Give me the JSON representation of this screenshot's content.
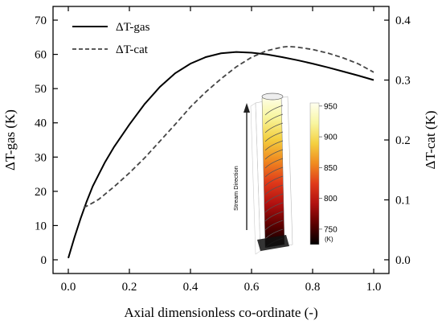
{
  "chart_data": {
    "type": "line",
    "xlabel": "Axial dimensionless co-ordinate (-)",
    "ylabel": "ΔT-gas (K)",
    "y2label": "ΔT-cat (K)",
    "xlim": [
      -0.05,
      1.05
    ],
    "ylim": [
      -4,
      74
    ],
    "y2lim": [
      -0.0229,
      0.4229
    ],
    "x_ticks": [
      "0.0",
      "0.2",
      "0.4",
      "0.6",
      "0.8",
      "1.0"
    ],
    "x_tick_values": [
      0,
      0.2,
      0.4,
      0.6,
      0.8,
      1.0
    ],
    "y_ticks": [
      "0",
      "10",
      "20",
      "30",
      "40",
      "50",
      "60",
      "70"
    ],
    "y_tick_values": [
      0,
      10,
      20,
      30,
      40,
      50,
      60,
      70
    ],
    "y2_ticks": [
      "0.0",
      "0.1",
      "0.2",
      "0.3",
      "0.4"
    ],
    "y2_tick_values": [
      0,
      0.1,
      0.2,
      0.3,
      0.4
    ],
    "grid": false,
    "legend_position": "top-left",
    "series": [
      {
        "name": "ΔT-gas",
        "axis": "left",
        "style": "solid",
        "color": "#000000",
        "x": [
          0.0,
          0.02,
          0.04,
          0.06,
          0.08,
          0.1,
          0.12,
          0.15,
          0.2,
          0.25,
          0.3,
          0.35,
          0.4,
          0.45,
          0.5,
          0.55,
          0.6,
          0.65,
          0.7,
          0.75,
          0.8,
          0.85,
          0.9,
          0.95,
          1.0
        ],
        "values": [
          0.5,
          6.5,
          12.0,
          17.0,
          21.5,
          25.0,
          28.5,
          33.0,
          39.5,
          45.5,
          50.5,
          54.5,
          57.3,
          59.2,
          60.3,
          60.7,
          60.5,
          60.0,
          59.2,
          58.3,
          57.3,
          56.2,
          55.0,
          53.8,
          52.5
        ]
      },
      {
        "name": "ΔT-cat",
        "axis": "right",
        "style": "dashed",
        "color": "#444444",
        "x": [
          0.05,
          0.08,
          0.1,
          0.15,
          0.2,
          0.25,
          0.3,
          0.35,
          0.4,
          0.45,
          0.5,
          0.55,
          0.6,
          0.65,
          0.7,
          0.72,
          0.75,
          0.8,
          0.85,
          0.9,
          0.95,
          1.0
        ],
        "values": [
          0.087,
          0.095,
          0.101,
          0.122,
          0.145,
          0.17,
          0.198,
          0.226,
          0.255,
          0.28,
          0.302,
          0.322,
          0.338,
          0.349,
          0.355,
          0.356,
          0.355,
          0.351,
          0.345,
          0.337,
          0.327,
          0.313
        ]
      }
    ]
  },
  "inset": {
    "stream_label": "Stream Direction",
    "colorbar_ticks": [
      "950",
      "900",
      "850",
      "800",
      "750"
    ],
    "colorbar_tick_values": [
      950,
      900,
      850,
      800,
      750
    ],
    "colorbar_range": [
      725,
      955
    ],
    "colorbar_unit": "(K)",
    "colors": [
      "#000000",
      "#5a0000",
      "#b01010",
      "#e03a1a",
      "#f08a20",
      "#f4d040",
      "#f8f6a0",
      "#fffff0"
    ]
  }
}
